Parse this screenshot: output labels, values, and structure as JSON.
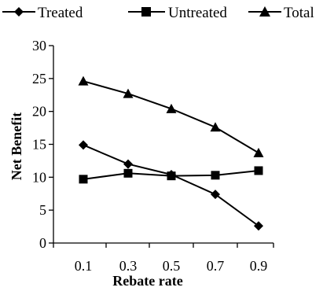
{
  "chart_data": {
    "type": "line",
    "title": "",
    "xlabel": "Rebate rate",
    "ylabel": "Net Benefit",
    "x": [
      0.1,
      0.3,
      0.5,
      0.7,
      0.9
    ],
    "x_tick_labels": [
      "0.1",
      "0.3",
      "0.5",
      "0.7",
      "0.9"
    ],
    "ylim": [
      0,
      30
    ],
    "y_ticks": [
      0,
      5,
      10,
      15,
      20,
      25,
      30
    ],
    "y_tick_labels": [
      "0",
      "5",
      "10",
      "15",
      "20",
      "25",
      "30"
    ],
    "grid": false,
    "legend_position": "top",
    "series": [
      {
        "name": "Treated",
        "marker": "diamond",
        "color": "#000000",
        "values": [
          14.9,
          12.0,
          10.4,
          7.4,
          2.6
        ]
      },
      {
        "name": "Untreated",
        "marker": "square",
        "color": "#000000",
        "values": [
          9.7,
          10.6,
          10.2,
          10.3,
          11.0
        ]
      },
      {
        "name": "Total",
        "marker": "triangle",
        "color": "#000000",
        "values": [
          24.6,
          22.7,
          20.4,
          17.6,
          13.7
        ]
      }
    ]
  }
}
